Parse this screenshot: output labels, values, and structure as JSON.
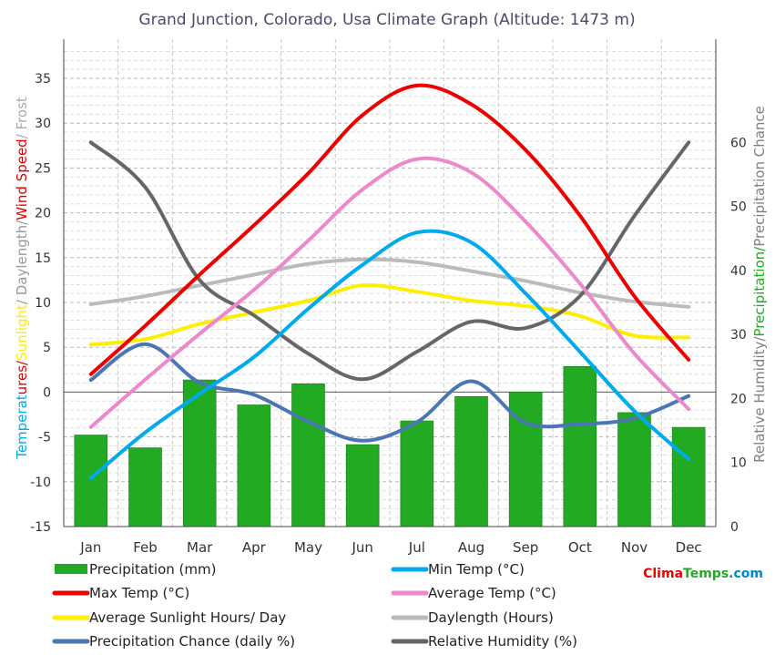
{
  "chart_data": {
    "type": "line",
    "title": "Grand Junction, Colorado, Usa Climate Graph (Altitude: 1473 m)",
    "categories": [
      "Jan",
      "Feb",
      "Mar",
      "Apr",
      "May",
      "Jun",
      "Jul",
      "Aug",
      "Sep",
      "Oct",
      "Nov",
      "Dec"
    ],
    "left_axis": {
      "range": [
        -15,
        35
      ],
      "ticks": [
        -15,
        -10,
        -5,
        0,
        5,
        10,
        15,
        20,
        25,
        30,
        35
      ],
      "title_parts": [
        {
          "text": "Temperat",
          "color": "#00aaee"
        },
        {
          "text": "ures/",
          "color": "#e00000"
        },
        {
          "text": "Sunlight",
          "color": "#ffee00"
        },
        {
          "text": "/ Daylength/",
          "color": "#999999"
        },
        {
          "text": "Wind Speed",
          "color": "#e00000"
        },
        {
          "text": "/ Frost",
          "color": "#aaaaaa"
        }
      ]
    },
    "right_axis": {
      "range": [
        0,
        70
      ],
      "ticks": [
        0,
        10,
        20,
        30,
        40,
        50,
        60
      ],
      "title_parts": [
        {
          "text": "Relative Humidity/",
          "color": "#808080"
        },
        {
          "text": "Precipitation/",
          "color": "#22aa22"
        },
        {
          "text": "Precipitation Chance",
          "color": "#808080"
        }
      ]
    },
    "series": [
      {
        "name": "Precipitation (mm)",
        "kind": "bar",
        "axis": "right",
        "color": "#22aa22",
        "values": [
          14.3,
          12.3,
          22.9,
          19.0,
          22.3,
          12.8,
          16.5,
          20.3,
          21.0,
          25.0,
          17.8,
          15.5
        ]
      },
      {
        "name": "Min Temp (°C)",
        "kind": "line",
        "axis": "left",
        "color": "#00aaee",
        "values": [
          -9.6,
          -4.5,
          -0.2,
          3.9,
          9.3,
          14.2,
          17.8,
          16.7,
          11.0,
          4.5,
          -2.1,
          -7.5
        ]
      },
      {
        "name": "Max Temp (°C)",
        "kind": "line",
        "axis": "left",
        "color": "#ee0000",
        "values": [
          2.0,
          7.4,
          13.1,
          18.6,
          24.4,
          30.9,
          34.2,
          32.1,
          27.0,
          19.7,
          10.7,
          3.6
        ]
      },
      {
        "name": "Average Temp (°C)",
        "kind": "line",
        "axis": "left",
        "color": "#ee88cc",
        "values": [
          -3.9,
          1.4,
          6.5,
          11.4,
          16.9,
          22.6,
          26.0,
          24.5,
          19.0,
          12.1,
          4.3,
          -1.9
        ]
      },
      {
        "name": "Average Sunlight Hours/ Day",
        "kind": "line",
        "axis": "left",
        "color": "#ffee00",
        "values": [
          5.3,
          5.9,
          7.6,
          8.9,
          10.2,
          11.9,
          11.2,
          10.2,
          9.6,
          8.5,
          6.3,
          6.1
        ]
      },
      {
        "name": "Daylength (Hours)",
        "kind": "line",
        "axis": "left",
        "color": "#bbbbbb",
        "values": [
          9.8,
          10.7,
          11.9,
          13.1,
          14.3,
          14.8,
          14.5,
          13.5,
          12.4,
          11.1,
          10.1,
          9.5
        ]
      },
      {
        "name": "Precipitation Chance (daily %)",
        "kind": "line",
        "axis": "right",
        "color": "#4a77b4",
        "values": [
          22.9,
          28.5,
          22.5,
          20.6,
          16.4,
          13.4,
          16.3,
          22.7,
          16.2,
          16.0,
          16.9,
          20.4
        ]
      },
      {
        "name": "Relative Humidity (%)",
        "kind": "line",
        "axis": "right",
        "color": "#666666",
        "values": [
          60.0,
          53.0,
          38.5,
          33.0,
          27.0,
          23.0,
          27.3,
          32.0,
          31.0,
          36.0,
          48.5,
          60.0
        ]
      }
    ],
    "grid": true,
    "legend_position": "bottom",
    "brand": {
      "parts": [
        {
          "text": "Clima",
          "color": "#ee0000"
        },
        {
          "text": "Temps",
          "color": "#22aa22"
        },
        {
          "text": ".com",
          "color": "#0088cc"
        }
      ]
    }
  }
}
